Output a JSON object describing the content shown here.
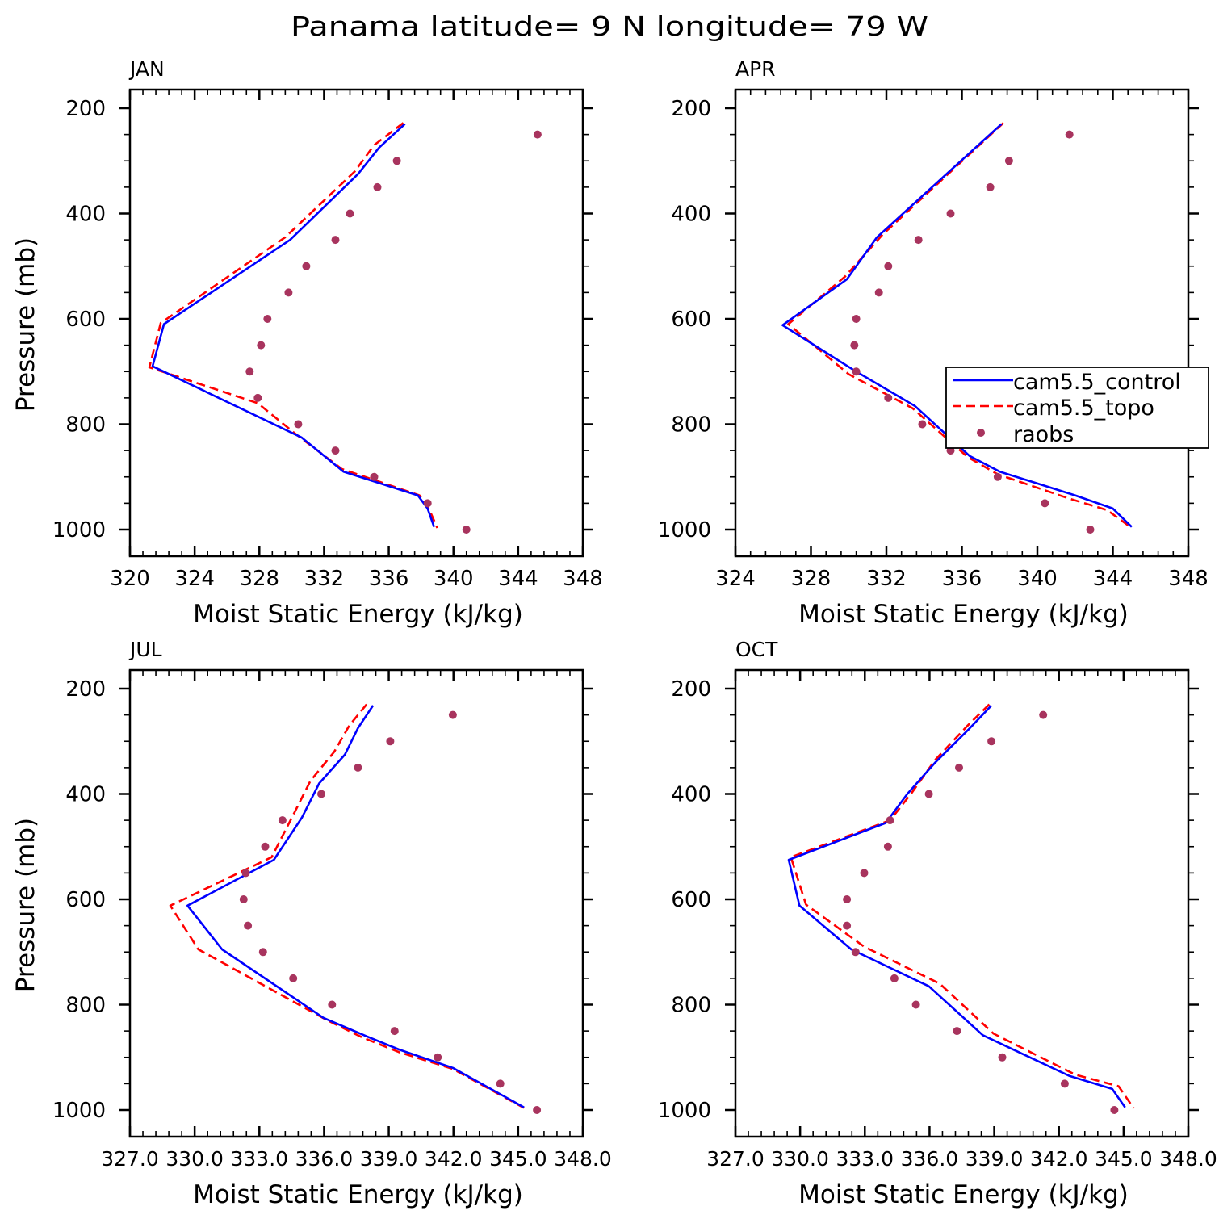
{
  "figure": {
    "title": "Panama  latitude= 9 N longitude= 79 W"
  },
  "legend": {
    "position": "right-middle of APR panel",
    "entries": [
      {
        "label": "cam5.5_control",
        "style": "solid",
        "color": "#0000ff"
      },
      {
        "label": "cam5.5_topo",
        "style": "dashed",
        "color": "#ff0000"
      },
      {
        "label": "raobs",
        "style": "dots",
        "color": "#a8345e"
      }
    ]
  },
  "colors": {
    "control": "#0000ff",
    "topo": "#ff0000",
    "raobs": "#a8345e"
  },
  "chart_data": [
    {
      "type": "line",
      "title": "JAN",
      "xlabel": "Moist Static Energy (kJ/kg)",
      "ylabel": "Pressure (mb)",
      "xlim": [
        320,
        348
      ],
      "ylim": [
        1000,
        200
      ],
      "xticks": [
        320,
        324,
        328,
        332,
        336,
        340,
        344,
        348
      ],
      "xtick_labels": [
        "320",
        "324",
        "328",
        "332",
        "336",
        "340",
        "344",
        "348"
      ],
      "yticks": [
        200,
        400,
        600,
        800,
        1000
      ],
      "ytick_labels": [
        "200",
        "400",
        "600",
        "800",
        "1000"
      ],
      "show_ylabel": true,
      "series": [
        {
          "name": "cam5.5_control",
          "x": [
            337.0,
            335.4,
            334.1,
            329.9,
            322.1,
            321.4,
            330.6,
            333.2,
            337.8,
            338.4,
            338.8
          ],
          "y": [
            230,
            275,
            325,
            450,
            610,
            690,
            825,
            890,
            935,
            960,
            995
          ]
        },
        {
          "name": "cam5.5_topo",
          "x": [
            336.9,
            335.1,
            333.9,
            329.6,
            321.9,
            321.2,
            327.9,
            330.3,
            333.1,
            337.9,
            338.5,
            339.0
          ],
          "y": [
            228,
            270,
            320,
            445,
            608,
            692,
            760,
            820,
            885,
            935,
            962,
            997
          ]
        },
        {
          "name": "raobs",
          "x": [
            345.2,
            336.5,
            335.3,
            333.6,
            332.7,
            330.9,
            329.8,
            328.5,
            328.1,
            327.4,
            327.9,
            330.4,
            332.7,
            335.1,
            338.4,
            340.8
          ],
          "y": [
            250,
            300,
            350,
            400,
            450,
            500,
            550,
            600,
            650,
            700,
            750,
            800,
            850,
            900,
            950,
            1000
          ]
        }
      ]
    },
    {
      "type": "line",
      "title": "APR",
      "xlabel": "Moist Static Energy (kJ/kg)",
      "ylabel": "Pressure (mb)",
      "xlim": [
        324,
        348
      ],
      "ylim": [
        1000,
        200
      ],
      "xticks": [
        324,
        328,
        332,
        336,
        340,
        344,
        348
      ],
      "xtick_labels": [
        "324",
        "328",
        "332",
        "336",
        "340",
        "344",
        "348"
      ],
      "yticks": [
        200,
        400,
        600,
        800,
        1000
      ],
      "ytick_labels": [
        "200",
        "400",
        "600",
        "800",
        "1000"
      ],
      "show_ylabel": false,
      "series": [
        {
          "name": "cam5.5_control",
          "x": [
            338.1,
            331.5,
            329.9,
            326.5,
            330.4,
            333.5,
            336.4,
            338.0,
            342.0,
            344.0,
            345.0
          ],
          "y": [
            230,
            445,
            525,
            612,
            700,
            765,
            860,
            890,
            935,
            960,
            995
          ]
        },
        {
          "name": "cam5.5_topo",
          "x": [
            338.2,
            331.8,
            329.8,
            326.8,
            330.0,
            333.4,
            336.3,
            337.9,
            341.6,
            343.7,
            345.0
          ],
          "y": [
            228,
            440,
            520,
            610,
            705,
            770,
            862,
            895,
            940,
            963,
            997
          ]
        },
        {
          "name": "raobs",
          "x": [
            341.7,
            338.5,
            337.5,
            335.4,
            333.7,
            332.1,
            331.6,
            330.4,
            330.3,
            330.4,
            332.1,
            333.9,
            335.4,
            337.9,
            340.4,
            342.8
          ],
          "y": [
            250,
            300,
            350,
            400,
            450,
            500,
            550,
            600,
            650,
            700,
            750,
            800,
            850,
            900,
            950,
            1000
          ]
        }
      ]
    },
    {
      "type": "line",
      "title": "JUL",
      "xlabel": "Moist Static Energy (kJ/kg)",
      "ylabel": "Pressure (mb)",
      "xlim": [
        327.03,
        348.03
      ],
      "ylim": [
        1000,
        200
      ],
      "xticks": [
        327.03,
        330.03,
        333.03,
        336.03,
        339.03,
        342.03,
        345.03,
        348.03
      ],
      "xtick_labels": [
        "327.0",
        "330.0",
        "333.0",
        "336.0",
        "339.0",
        "342.0",
        "345.0",
        "348.0"
      ],
      "yticks": [
        200,
        400,
        600,
        800,
        1000
      ],
      "ytick_labels": [
        "200",
        "400",
        "600",
        "800",
        "1000"
      ],
      "show_ylabel": true,
      "series": [
        {
          "name": "cam5.5_control",
          "x": [
            338.3,
            337.6,
            337.0,
            335.8,
            335.0,
            333.7,
            329.7,
            331.3,
            336.0,
            338.0,
            339.5,
            342.0,
            345.3
          ],
          "y": [
            232,
            275,
            325,
            380,
            445,
            525,
            612,
            695,
            825,
            860,
            885,
            920,
            995
          ]
        },
        {
          "name": "cam5.5_topo",
          "x": [
            338.0,
            337.2,
            336.5,
            335.4,
            334.6,
            333.6,
            328.9,
            330.2,
            336.2,
            337.8,
            339.5,
            342.0,
            345.3
          ],
          "y": [
            230,
            270,
            320,
            375,
            440,
            520,
            612,
            695,
            830,
            862,
            890,
            922,
            996
          ]
        },
        {
          "name": "raobs",
          "x": [
            342.0,
            339.1,
            337.6,
            335.9,
            334.1,
            333.3,
            332.4,
            332.3,
            332.5,
            333.2,
            334.6,
            336.4,
            339.3,
            341.3,
            344.2,
            345.9
          ],
          "y": [
            250,
            300,
            350,
            400,
            450,
            500,
            550,
            600,
            650,
            700,
            750,
            800,
            850,
            900,
            950,
            1000
          ]
        }
      ]
    },
    {
      "type": "line",
      "title": "OCT",
      "xlabel": "Moist Static Energy (kJ/kg)",
      "ylabel": "Pressure (mb)",
      "xlim": [
        327.03,
        348.03
      ],
      "ylim": [
        1000,
        200
      ],
      "xticks": [
        327.03,
        330.03,
        333.03,
        336.03,
        339.03,
        342.03,
        345.03,
        348.03
      ],
      "xtick_labels": [
        "327.0",
        "330.0",
        "333.0",
        "336.0",
        "339.0",
        "342.0",
        "345.0",
        "348.0"
      ],
      "yticks": [
        200,
        400,
        600,
        800,
        1000
      ],
      "ytick_labels": [
        "200",
        "400",
        "600",
        "800",
        "1000"
      ],
      "show_ylabel": false,
      "series": [
        {
          "name": "cam5.5_control",
          "x": [
            338.9,
            337.9,
            336.3,
            335.0,
            334.0,
            329.5,
            330.0,
            332.4,
            336.0,
            338.5,
            342.5,
            344.5,
            345.1
          ],
          "y": [
            232,
            275,
            340,
            400,
            455,
            525,
            612,
            695,
            765,
            858,
            935,
            960,
            995
          ]
        },
        {
          "name": "cam5.5_topo",
          "x": [
            338.8,
            337.8,
            336.3,
            335.2,
            334.2,
            329.6,
            330.3,
            333.0,
            336.5,
            339.0,
            342.8,
            344.8,
            345.5
          ],
          "y": [
            230,
            270,
            335,
            398,
            450,
            520,
            610,
            690,
            760,
            855,
            933,
            955,
            997
          ]
        },
        {
          "name": "raobs",
          "x": [
            341.3,
            338.9,
            337.4,
            336.0,
            334.2,
            334.1,
            333.0,
            332.2,
            332.2,
            332.6,
            334.4,
            335.4,
            337.3,
            339.4,
            342.3,
            344.6
          ],
          "y": [
            250,
            300,
            350,
            400,
            450,
            500,
            550,
            600,
            650,
            700,
            750,
            800,
            850,
            900,
            950,
            1000
          ]
        }
      ]
    }
  ]
}
